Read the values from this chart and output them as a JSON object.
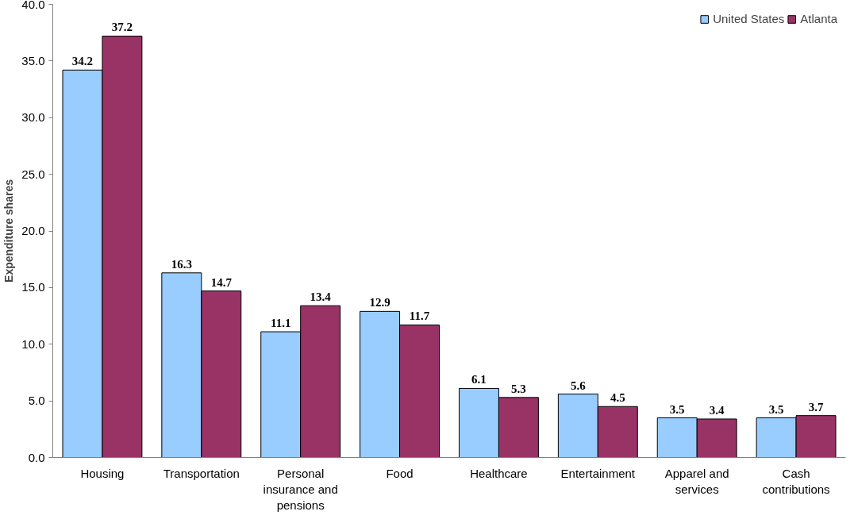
{
  "chart_data": {
    "type": "bar",
    "ylabel": "Expenditure shares",
    "categories": [
      "Housing",
      "Transportation",
      "Personal insurance and pensions",
      "Food",
      "Healthcare",
      "Entertainment",
      "Apparel and services",
      "Cash contributions"
    ],
    "series": [
      {
        "name": "United States",
        "color": "#99ccff",
        "values": [
          34.2,
          16.3,
          11.1,
          12.9,
          6.1,
          5.6,
          3.5,
          3.5
        ]
      },
      {
        "name": "Atlanta",
        "color": "#993366",
        "values": [
          37.2,
          14.7,
          13.4,
          11.7,
          5.3,
          4.5,
          3.4,
          3.7
        ]
      }
    ],
    "ylim": [
      0,
      40
    ],
    "yticks": [
      {
        "value": 0,
        "label": "0.0"
      },
      {
        "value": 5,
        "label": "5.0"
      },
      {
        "value": 10,
        "label": "10.0"
      },
      {
        "value": 15,
        "label": "15.0"
      },
      {
        "value": 20,
        "label": "20.0"
      },
      {
        "value": 25,
        "label": "25.0"
      },
      {
        "value": 30,
        "label": "30.0"
      },
      {
        "value": 35,
        "label": "35.0"
      },
      {
        "value": 40,
        "label": "40.0"
      }
    ],
    "grid": false,
    "legend": "top right",
    "data_labels": true
  }
}
